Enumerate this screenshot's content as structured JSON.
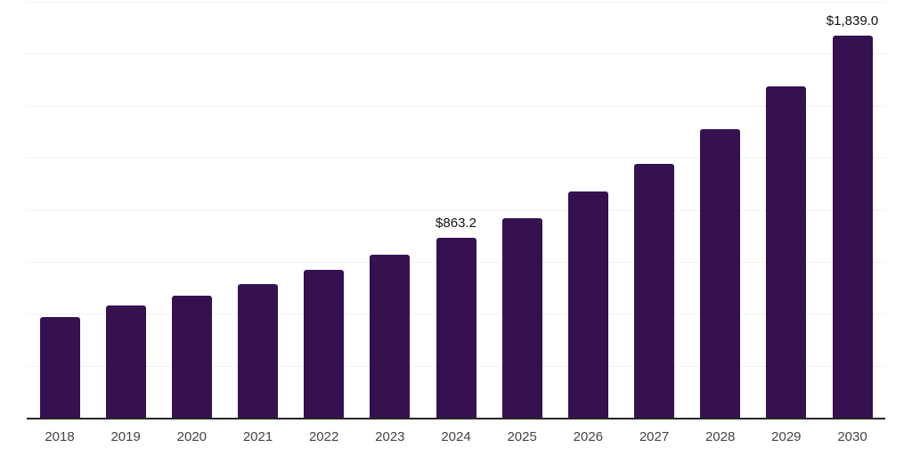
{
  "chart_data": {
    "type": "bar",
    "title": "",
    "xlabel": "",
    "ylabel": "",
    "categories": [
      "2018",
      "2019",
      "2020",
      "2021",
      "2022",
      "2023",
      "2024",
      "2025",
      "2026",
      "2027",
      "2028",
      "2029",
      "2030"
    ],
    "values": [
      483,
      541,
      587,
      644,
      709,
      783,
      863.2,
      959,
      1087,
      1219,
      1389,
      1593,
      1839
    ],
    "data_labels": [
      null,
      null,
      null,
      null,
      null,
      null,
      "$863.2",
      null,
      null,
      null,
      null,
      null,
      "$1,839.0"
    ],
    "ylim": [
      0,
      2000
    ],
    "gridline_step": 250,
    "grid": true,
    "legend": false,
    "colors": {
      "bar": "#351150",
      "gridline": "#f0f0f0",
      "axis_line": "#262626",
      "tick_label": "#444444",
      "data_label": "#111111",
      "background": "#ffffff"
    }
  }
}
